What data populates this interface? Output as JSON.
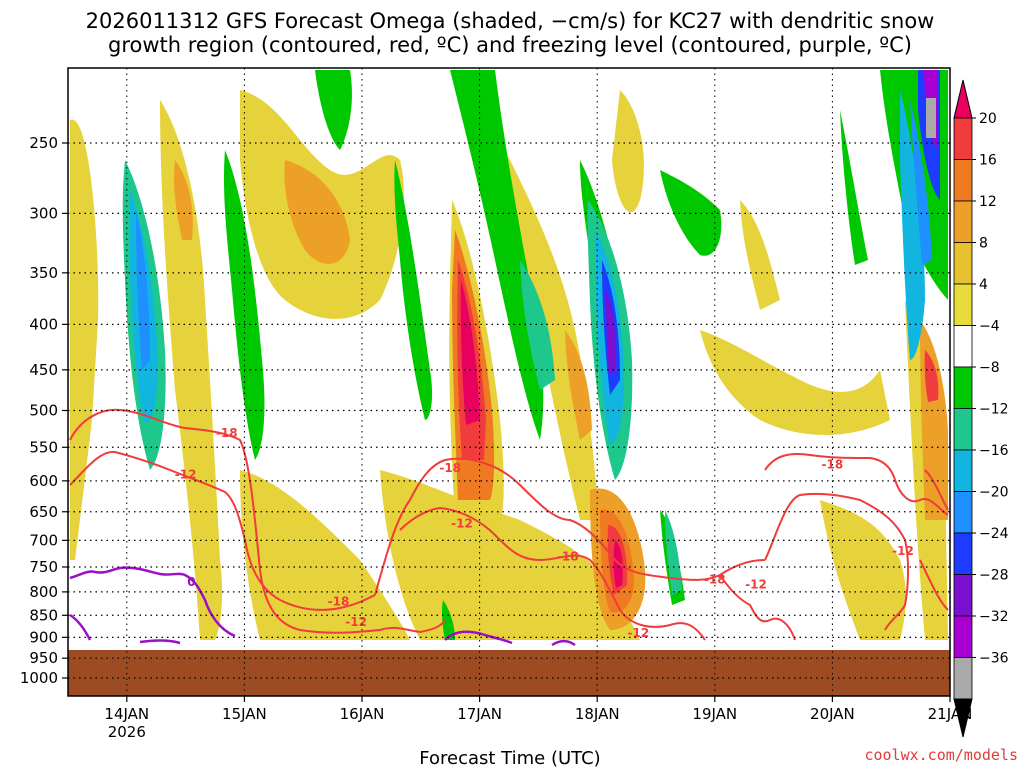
{
  "title": {
    "line1": "2026011312 GFS Forecast Omega (shaded, −cm/s) for KC27 with dendritic snow",
    "line2": "growth region (contoured, red, ºC) and freezing level (contoured, purple, ºC)"
  },
  "credit": "coolwx.com/models",
  "colors": {
    "ground": "#9c4b22",
    "dgz_contour": "#f03c3c",
    "freezing_contour": "#9a10c8",
    "grid": "#000000"
  },
  "chart_data": {
    "type": "heatmap",
    "title": "2026011312 GFS Forecast Omega (shaded, −cm/s) for KC27 with dendritic snow growth region (contoured, red, ºC) and freezing level (contoured, purple, ºC)",
    "xlabel": "Forecast Time (UTC)",
    "ylabel": "",
    "x_ticks": [
      {
        "day": 14,
        "label": "14JAN",
        "sublabel": "2026"
      },
      {
        "day": 15,
        "label": "15JAN",
        "sublabel": ""
      },
      {
        "day": 16,
        "label": "16JAN",
        "sublabel": ""
      },
      {
        "day": 17,
        "label": "17JAN",
        "sublabel": ""
      },
      {
        "day": 18,
        "label": "18JAN",
        "sublabel": ""
      },
      {
        "day": 19,
        "label": "19JAN",
        "sublabel": ""
      },
      {
        "day": 20,
        "label": "20JAN",
        "sublabel": ""
      },
      {
        "day": 21,
        "label": "21JAN",
        "sublabel": ""
      }
    ],
    "xlim": [
      13.5,
      21.0
    ],
    "y_ticks": [
      250,
      300,
      350,
      400,
      450,
      500,
      550,
      600,
      650,
      700,
      750,
      800,
      850,
      900,
      950,
      1000
    ],
    "ylim": [
      200,
      1050
    ],
    "y_log": true,
    "ground_top_hpa": 930,
    "colorbar": {
      "levels": [
        "20",
        "16",
        "12",
        "8",
        "4",
        "−4",
        "−8",
        "−12",
        "−16",
        "−20",
        "−24",
        "−28",
        "−32",
        "−36"
      ],
      "colors": [
        "#e8005e",
        "#f03c3c",
        "#f07a22",
        "#eca028",
        "#e6c230",
        "#e8dc3a",
        "#ffffff",
        "#00c800",
        "#1ec88c",
        "#12b4e0",
        "#1e90ff",
        "#1e3cff",
        "#7b10d0",
        "#a800d2",
        "#aaaaaa",
        "#000000"
      ]
    },
    "contours_dgz": [
      {
        "label": "-18",
        "day": 14.85,
        "p": 530
      },
      {
        "label": "-12",
        "day": 14.5,
        "p": 590
      },
      {
        "label": "-18",
        "day": 15.8,
        "p": 820
      },
      {
        "label": "-12",
        "day": 15.95,
        "p": 865
      },
      {
        "label": "-18",
        "day": 16.75,
        "p": 580
      },
      {
        "label": "-12",
        "day": 16.85,
        "p": 670
      },
      {
        "label": "-18",
        "day": 17.75,
        "p": 730
      },
      {
        "label": "-12",
        "day": 18.35,
        "p": 890
      },
      {
        "label": "-18",
        "day": 19.0,
        "p": 775
      },
      {
        "label": "-12",
        "day": 19.35,
        "p": 785
      },
      {
        "label": "-18",
        "day": 20.0,
        "p": 575
      },
      {
        "label": "-12",
        "day": 20.6,
        "p": 720
      }
    ],
    "contours_freezing": [
      {
        "label": "0",
        "day": 14.55,
        "p": 780
      }
    ]
  }
}
